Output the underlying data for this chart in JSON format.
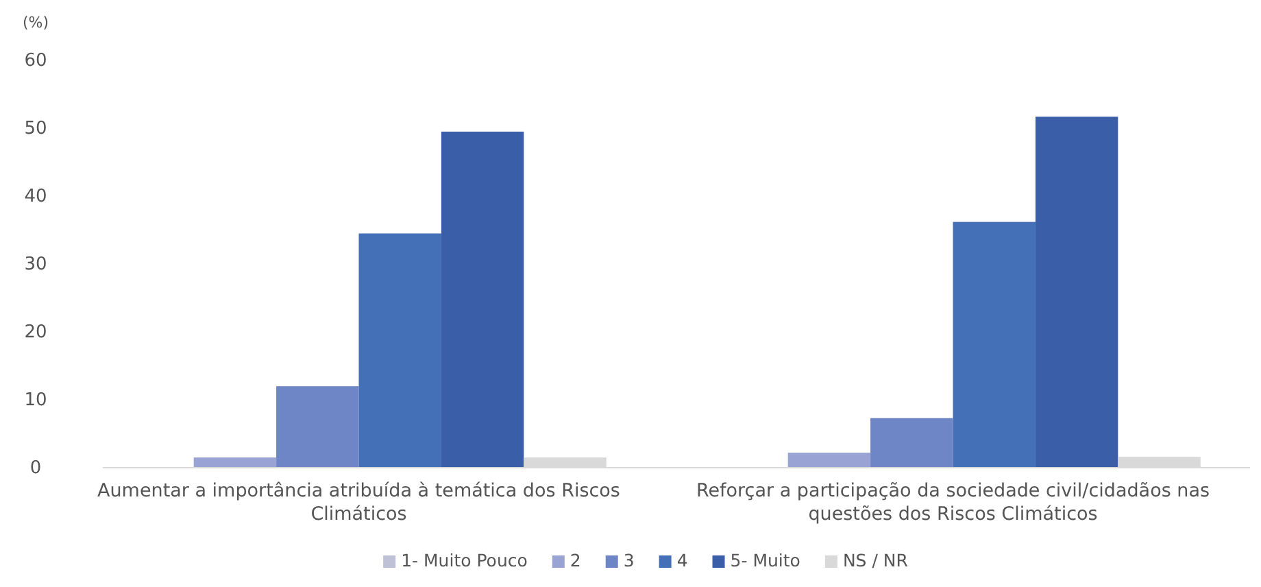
{
  "chart_data": {
    "type": "bar",
    "ylabel": "(%)",
    "categories": [
      "Aumentar a importância atribuída à temática dos Riscos Climáticos",
      "Reforçar a participação da sociedade civil/cidadãos nas questões dos Riscos Climáticos"
    ],
    "series": [
      {
        "name": "1- Muito Pouco",
        "color": "#bfc1d6",
        "values": [
          0,
          0
        ]
      },
      {
        "name": "2",
        "color": "#9aa4d4",
        "values": [
          1.5,
          2.2
        ]
      },
      {
        "name": "3",
        "color": "#6f86c6",
        "values": [
          12,
          7.3
        ]
      },
      {
        "name": "4",
        "color": "#4470b8",
        "values": [
          34.5,
          36.2
        ]
      },
      {
        "name": "5- Muito",
        "color": "#3a5ea8",
        "values": [
          49.5,
          51.7
        ]
      },
      {
        "name": "NS / NR",
        "color": "#d9d9d9",
        "values": [
          1.5,
          1.6
        ]
      }
    ],
    "ylim": [
      0,
      60
    ],
    "yticks": [
      0,
      10,
      20,
      30,
      40,
      50,
      60
    ],
    "grid": false,
    "legend": "bottom"
  }
}
